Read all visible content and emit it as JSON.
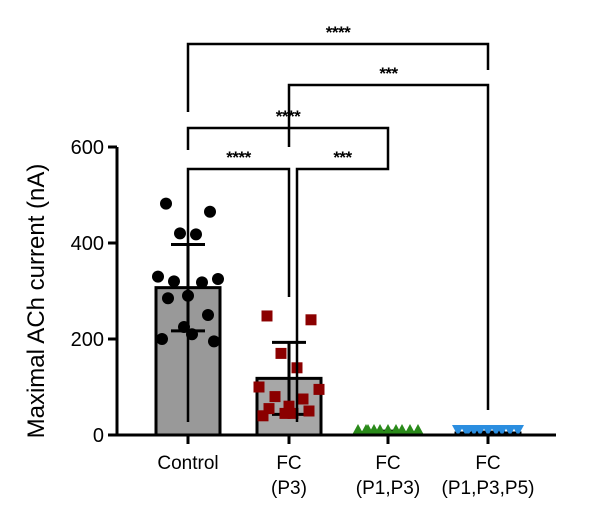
{
  "chart_data": {
    "type": "bar",
    "title": "",
    "xlabel": "",
    "ylabel": "Maximal ACh current (nA)",
    "ylim": [
      0,
      600
    ],
    "yticks": [
      0,
      200,
      400,
      600
    ],
    "grid": false,
    "categories": [
      {
        "line1": "Control",
        "line2": "",
        "fill": "#999999",
        "marker": "circle",
        "marker_color": "#000000"
      },
      {
        "line1": "FC",
        "line2": "(P3)",
        "fill": "#a7a7a7",
        "marker": "square",
        "marker_color": "#8b0000"
      },
      {
        "line1": "FC",
        "line2": "(P1,P3)",
        "fill": "#a7a7a7",
        "marker": "triangle-up",
        "marker_color": "#2a8a1a"
      },
      {
        "line1": "FC",
        "line2": "(P1,P3,P5)",
        "fill": "#a7a7a7",
        "marker": "triangle-down",
        "marker_color": "#2b8ee0"
      }
    ],
    "series": [
      {
        "mean": 307,
        "sd": 90,
        "points": [
          482,
          465,
          420,
          418,
          330,
          325,
          320,
          318,
          290,
          285,
          250,
          225,
          210,
          200,
          195
        ]
      },
      {
        "mean": 118,
        "sd": 75,
        "points": [
          248,
          240,
          170,
          140,
          100,
          95,
          80,
          75,
          60,
          55,
          50,
          45,
          45,
          40
        ]
      },
      {
        "mean": 5,
        "sd": 3,
        "points": [
          10,
          8,
          8,
          7,
          6,
          5,
          5,
          4,
          4,
          3
        ]
      },
      {
        "mean": 4,
        "sd": 2,
        "points": [
          6,
          5,
          5,
          4,
          4,
          3,
          3,
          3,
          2,
          2
        ]
      }
    ],
    "comparisons": [
      {
        "from": 0,
        "to": 3,
        "label": "****"
      },
      {
        "from": 1,
        "to": 3,
        "label": "***"
      },
      {
        "from": 0,
        "to": 2,
        "label": "****"
      },
      {
        "from": 0,
        "to": 1,
        "label": "****"
      },
      {
        "from": 1,
        "to": 2,
        "label": "***"
      }
    ]
  }
}
